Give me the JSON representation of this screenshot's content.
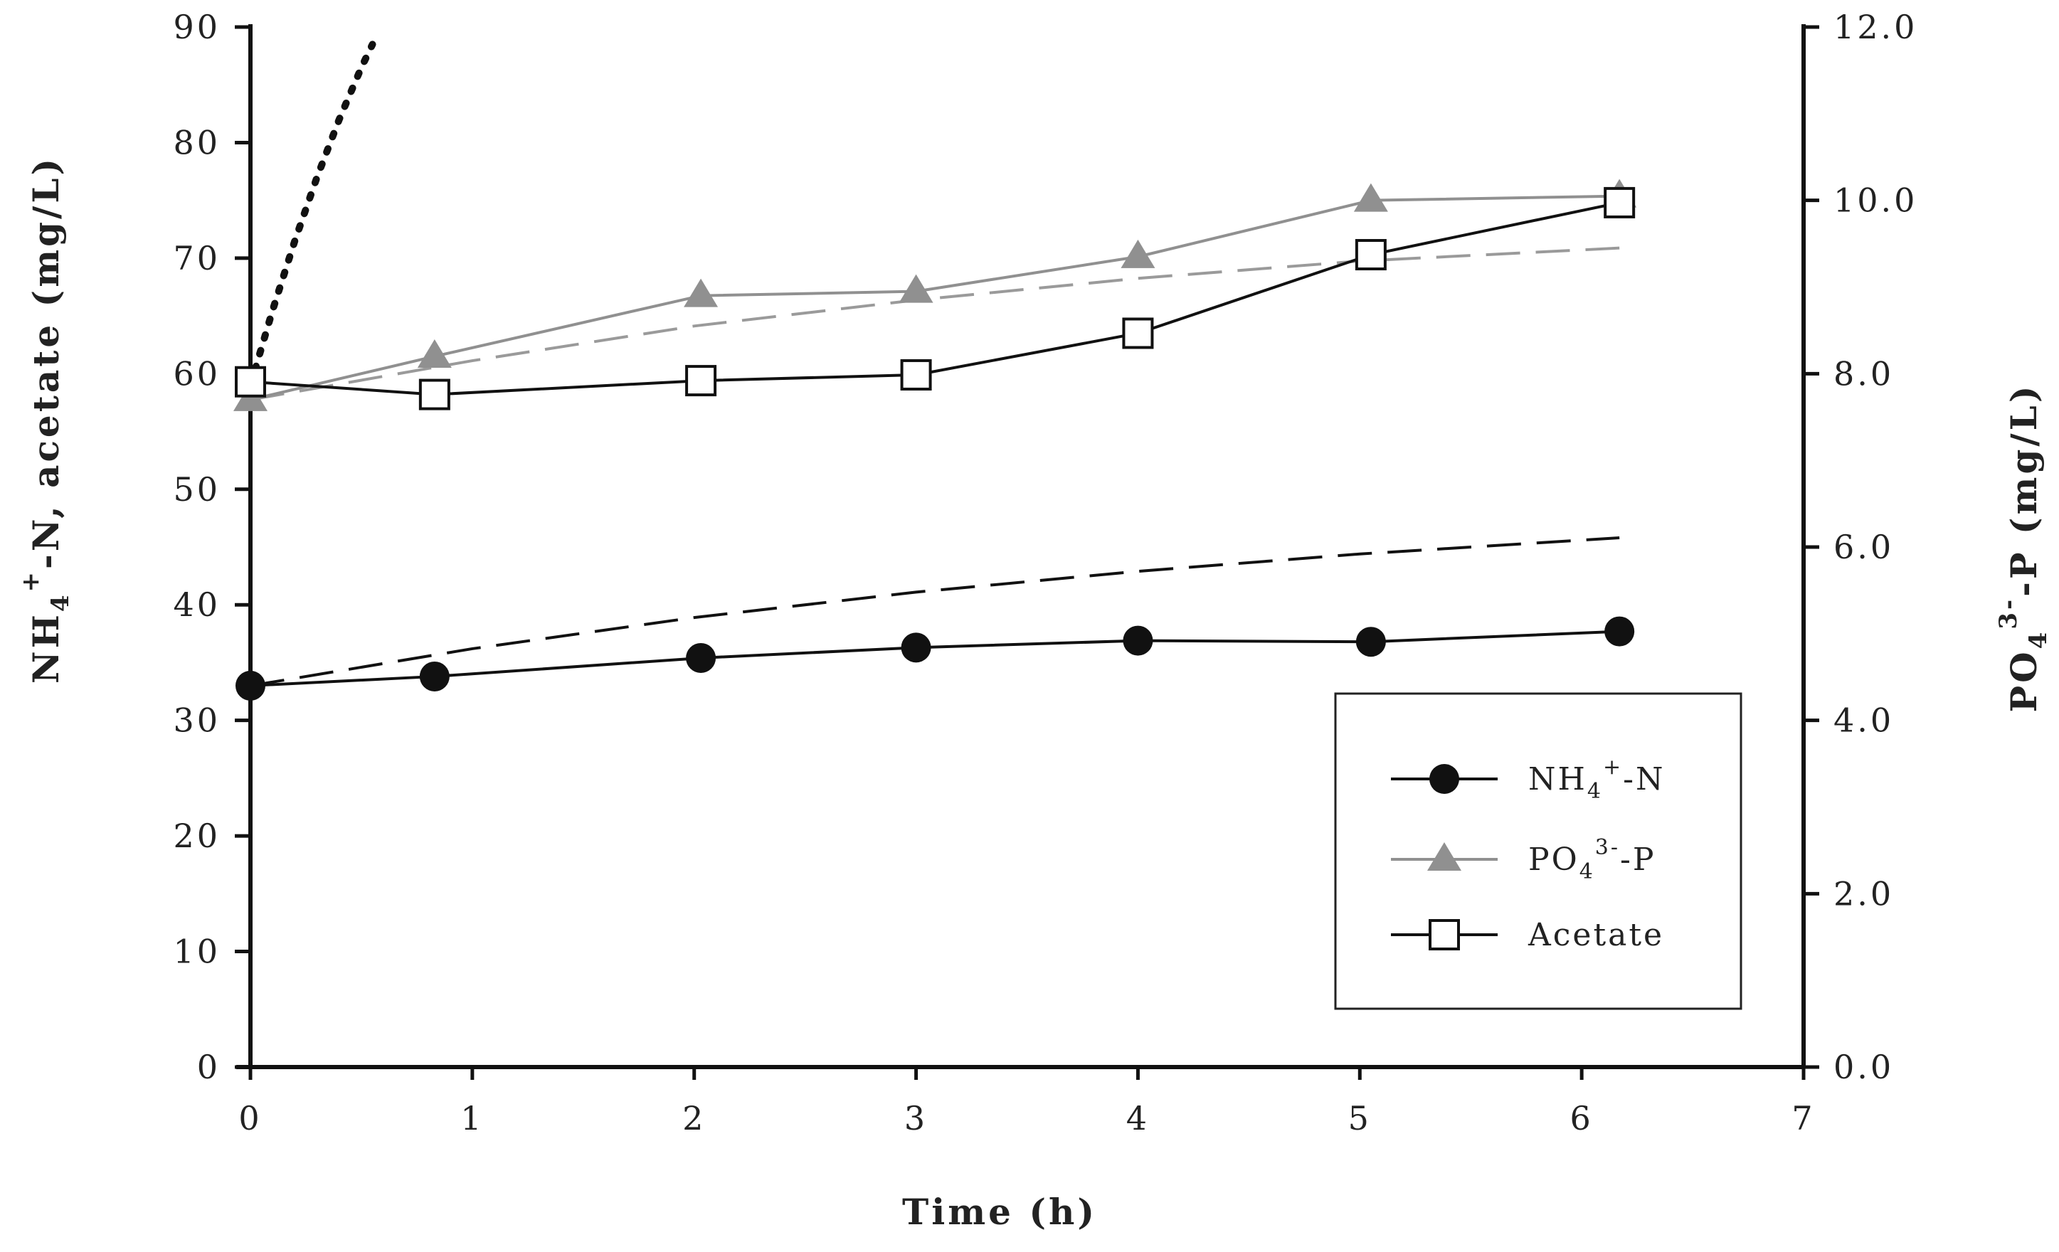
{
  "chart_data": {
    "type": "line",
    "title": "",
    "xlabel": "Time (h)",
    "ylabel_left": "NH4+-N, acetate (mg/L)",
    "ylabel_right": "PO43--P (mg/L)",
    "xlim": [
      0,
      7
    ],
    "ylim_left": [
      0,
      90
    ],
    "ylim_right": [
      0.0,
      12.0
    ],
    "x_ticks": [
      "0",
      "1",
      "2",
      "3",
      "4",
      "5",
      "6",
      "7"
    ],
    "y_left_ticks": [
      "0",
      "10",
      "20",
      "30",
      "40",
      "50",
      "60",
      "70",
      "80",
      "90"
    ],
    "y_right_ticks": [
      "0.0",
      "2.0",
      "4.0",
      "6.0",
      "8.0",
      "10.0",
      "12.0"
    ],
    "grid": false,
    "legend_position": "center-right",
    "series": [
      {
        "name": "NH4+-N",
        "axis": "left",
        "marker": "circle",
        "color": "#111111",
        "x": [
          0,
          0.83,
          2.03,
          3.0,
          4.0,
          5.05,
          6.17
        ],
        "values": [
          33.0,
          33.8,
          35.4,
          36.3,
          36.9,
          36.8,
          37.7
        ]
      },
      {
        "name": "PO43--P",
        "axis": "right",
        "marker": "triangle",
        "color": "#909090",
        "x": [
          0,
          0.83,
          2.03,
          3.0,
          4.0,
          5.05,
          6.17
        ],
        "values": [
          7.7,
          8.2,
          8.9,
          8.95,
          9.35,
          10.0,
          10.05
        ]
      },
      {
        "name": "Acetate",
        "axis": "left",
        "marker": "square",
        "color": "#111111",
        "x": [
          0,
          0.83,
          2.03,
          3.0,
          4.0,
          5.05,
          6.17
        ],
        "values": [
          59.3,
          58.2,
          59.4,
          59.9,
          63.5,
          70.3,
          74.8
        ]
      }
    ],
    "model_curves": [
      {
        "name": "NH4+-N model",
        "style": "long-dash",
        "color": "#111111",
        "axis": "left",
        "x": [
          0,
          1,
          2,
          3,
          4,
          5,
          6.17
        ],
        "values": [
          33.0,
          36.2,
          38.9,
          41.1,
          42.9,
          44.4,
          45.8
        ]
      },
      {
        "name": "PO43--P model",
        "style": "long-dash",
        "color": "#9a9a9a",
        "axis": "right",
        "x": [
          0,
          1,
          2,
          3,
          4,
          5,
          6.17
        ],
        "values": [
          7.7,
          8.15,
          8.55,
          8.85,
          9.1,
          9.3,
          9.45
        ]
      },
      {
        "name": "Acetate model",
        "style": "dotted",
        "color": "#111111",
        "axis": "left",
        "x": [
          0,
          0.1,
          0.2,
          0.3,
          0.4,
          0.5,
          0.55
        ],
        "values": [
          59.0,
          65.5,
          71.5,
          77.0,
          82.0,
          86.5,
          88.5
        ]
      }
    ],
    "legend": {
      "entries": [
        {
          "base": "NH",
          "sub": "4",
          "sup": "+",
          "tail": "-N",
          "series": "NH4+-N"
        },
        {
          "base": "PO",
          "sub": "4",
          "sup": "3-",
          "tail": "-P",
          "series": "PO43--P"
        },
        {
          "base": "Acetate",
          "sub": "",
          "sup": "",
          "tail": "",
          "series": "Acetate"
        }
      ]
    },
    "ylabel_left_parts": {
      "base": "NH",
      "sub": "4",
      "sup": "+",
      "tail": "-N, acetate (mg/L)"
    },
    "ylabel_right_parts": {
      "base": "PO",
      "sub": "4",
      "sup": "3-",
      "tail": "-P (mg/L)"
    }
  }
}
